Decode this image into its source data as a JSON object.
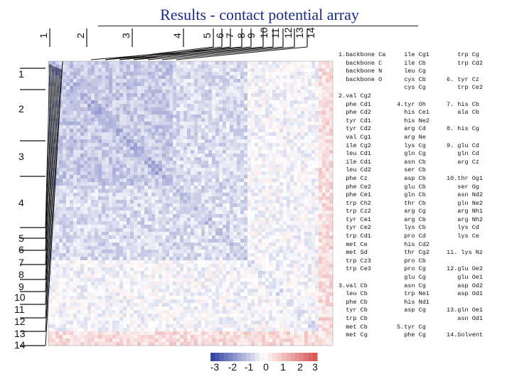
{
  "title": "Results - contact potential array",
  "row_labels": [
    "1",
    "2",
    "3",
    "4",
    "5",
    "6",
    "7",
    "8",
    "9",
    "10",
    "11",
    "12",
    "13",
    "14"
  ],
  "col_labels": [
    "1",
    "2",
    "3",
    "4",
    "5",
    "6",
    "7",
    "8",
    "9",
    "10",
    "11",
    "12",
    "13",
    "14"
  ],
  "colorbar": {
    "ticks": [
      "-3",
      "-2",
      "-1",
      "0",
      "1",
      "2",
      "3"
    ],
    "range": [
      -3,
      3
    ],
    "colors": {
      "negative": "#2b3a9a",
      "zero": "#ffffff",
      "positive": "#d9534f"
    }
  },
  "legend": {
    "col1": [
      "1.backbone Ca",
      "  backbone C",
      "  backbone N",
      "  backbone O",
      "",
      "2.val Cg2",
      "  phe Cd1",
      "  phe Cd2",
      "  tyr Cd1",
      "  tyr Cd2",
      "  val Cg1",
      "  ile Cg2",
      "  leu Cd1",
      "  ile Cd1",
      "  leu Cd2",
      "  phe Cz",
      "  phe Ce2",
      "  phe Ce1",
      "  trp Ch2",
      "  trp Cz2",
      "  tyr Ce1",
      "  tyr Ce2",
      "  trp Cd1",
      "  met Ce",
      "  met Sd",
      "  trp Cz3",
      "  trp Ce3",
      "",
      "3.val Cb",
      "  leu Cb",
      "  phe Cb",
      "  tyr Cb",
      "  trp Cb",
      "  met Cb",
      "  met Cg"
    ],
    "col2": [
      "  ile Cg1",
      "  ile Cb",
      "  leu Cg",
      "  cys Cb",
      "  cys Cg",
      "",
      "4.tyr Oh",
      "  his Ce1",
      "  his Ne2",
      "  arg Cd",
      "  arg Ne",
      "  lys Cg",
      "  gln Cg",
      "  asn Cb",
      "  ser Cb",
      "  asp Cb",
      "  glu Cb",
      "  gln Cb",
      "  thr Cb",
      "  arg Cg",
      "  arg Cb",
      "  lys Cb",
      "  pro Cd",
      "  his Cd2",
      "  thr Cg2",
      "  pro Cb",
      "  pro Cg",
      "  glu Cg",
      "  asn Cg",
      "  trp Ne1",
      "  his Nd1",
      "  asp Cg",
      "",
      "5.tyr Cg",
      "  phe Cg"
    ],
    "col3": [
      "   trp Cg",
      "   trp Cd2",
      "",
      "6. tyr Cz",
      "   trp Ce2",
      "",
      "7. his Cb",
      "   ala Cb",
      "",
      "8. his Cg",
      "",
      "9. glu Cd",
      "   gln Cd",
      "   arg Cz",
      "",
      "10.thr Og1",
      "   ser Og",
      "   asn Nd2",
      "   gln Ne2",
      "   arg Nh1",
      "   arg Nh2",
      "   lys Cd",
      "   lys Ce",
      "",
      "11. lys Nz",
      "",
      "12.glu Oe2",
      "   glu Oe1",
      "   asp Od2",
      "   asp Od1",
      "",
      "13.gln Oe1",
      "   asn Od1",
      "",
      "14.Solvent"
    ]
  }
}
